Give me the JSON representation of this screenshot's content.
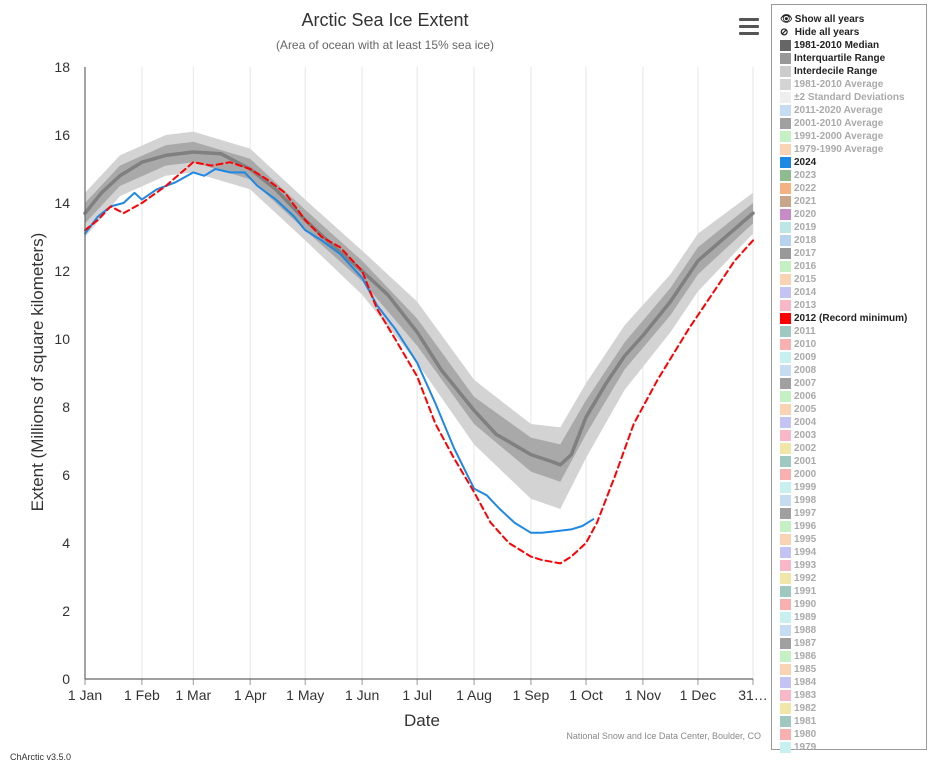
{
  "header": {
    "title": "Arctic Sea Ice Extent",
    "subtitle": "(Area of ocean with at least 15% sea ice)"
  },
  "footer": {
    "credit": "National Snow and Ice Data Center, Boulder, CO",
    "version": "ChArctic v3.5.0"
  },
  "icons": {
    "menu": "hamburger-menu-icon",
    "show": "eye-icon",
    "hide": "eye-slash-icon"
  },
  "legend": {
    "show_all": "Show all years",
    "hide_all": "Hide all years",
    "items": [
      {
        "label": "1981-2010 Median",
        "color": "#666666",
        "on": true
      },
      {
        "label": "Interquartile Range",
        "color": "#999999",
        "on": true
      },
      {
        "label": "Interdecile Range",
        "color": "#cccccc",
        "on": true
      },
      {
        "label": "1981-2010 Average",
        "color": "#d4d4d4",
        "on": false
      },
      {
        "label": "±2 Standard Deviations",
        "color": "#eeeeee",
        "on": false
      },
      {
        "label": "2011-2020 Average",
        "color": "#c6dcf2",
        "on": false
      },
      {
        "label": "2001-2010 Average",
        "color": "#a0a0a0",
        "on": false
      },
      {
        "label": "1991-2000 Average",
        "color": "#c4f0c4",
        "on": false
      },
      {
        "label": "1979-1990 Average",
        "color": "#fad2b4",
        "on": false
      },
      {
        "label": "2024",
        "color": "#1e88e5",
        "on": true
      },
      {
        "label": "2023",
        "color": "#8fbc8f",
        "on": false
      },
      {
        "label": "2022",
        "color": "#f4b183",
        "on": false
      },
      {
        "label": "2021",
        "color": "#c9a58a",
        "on": false
      },
      {
        "label": "2020",
        "color": "#c78bc7",
        "on": false
      },
      {
        "label": "2019",
        "color": "#bde5e5",
        "on": false
      },
      {
        "label": "2018",
        "color": "#b7d3ee",
        "on": false
      },
      {
        "label": "2017",
        "color": "#999999",
        "on": false
      },
      {
        "label": "2016",
        "color": "#c4f0c4",
        "on": false
      },
      {
        "label": "2015",
        "color": "#fad2b4",
        "on": false
      },
      {
        "label": "2014",
        "color": "#c4c4f4",
        "on": false
      },
      {
        "label": "2013",
        "color": "#f8b8c8",
        "on": false
      },
      {
        "label": "2012 (Record minimum)",
        "color": "#ff0000",
        "on": true
      },
      {
        "label": "2011",
        "color": "#9fc8c0",
        "on": false
      },
      {
        "label": "2010",
        "color": "#f8b0b0",
        "on": false
      },
      {
        "label": "2009",
        "color": "#c8f0f0",
        "on": false
      },
      {
        "label": "2008",
        "color": "#c6dcf2",
        "on": false
      },
      {
        "label": "2007",
        "color": "#a0a0a0",
        "on": false
      },
      {
        "label": "2006",
        "color": "#c4f0c4",
        "on": false
      },
      {
        "label": "2005",
        "color": "#fad2b4",
        "on": false
      },
      {
        "label": "2004",
        "color": "#c4c4f4",
        "on": false
      },
      {
        "label": "2003",
        "color": "#f8b8c8",
        "on": false
      },
      {
        "label": "2002",
        "color": "#f0e6a8",
        "on": false
      },
      {
        "label": "2001",
        "color": "#9fc8c0",
        "on": false
      },
      {
        "label": "2000",
        "color": "#f8b0b0",
        "on": false
      },
      {
        "label": "1999",
        "color": "#c8f0f0",
        "on": false
      },
      {
        "label": "1998",
        "color": "#c6dcf2",
        "on": false
      },
      {
        "label": "1997",
        "color": "#a0a0a0",
        "on": false
      },
      {
        "label": "1996",
        "color": "#c4f0c4",
        "on": false
      },
      {
        "label": "1995",
        "color": "#fad2b4",
        "on": false
      },
      {
        "label": "1994",
        "color": "#c4c4f4",
        "on": false
      },
      {
        "label": "1993",
        "color": "#f8b8c8",
        "on": false
      },
      {
        "label": "1992",
        "color": "#f0e6a8",
        "on": false
      },
      {
        "label": "1991",
        "color": "#9fc8c0",
        "on": false
      },
      {
        "label": "1990",
        "color": "#f8b0b0",
        "on": false
      },
      {
        "label": "1989",
        "color": "#c8f0f0",
        "on": false
      },
      {
        "label": "1988",
        "color": "#c6dcf2",
        "on": false
      },
      {
        "label": "1987",
        "color": "#a0a0a0",
        "on": false
      },
      {
        "label": "1986",
        "color": "#c4f0c4",
        "on": false
      },
      {
        "label": "1985",
        "color": "#fad2b4",
        "on": false
      },
      {
        "label": "1984",
        "color": "#c4c4f4",
        "on": false
      },
      {
        "label": "1983",
        "color": "#f8b8c8",
        "on": false
      },
      {
        "label": "1982",
        "color": "#f0e6a8",
        "on": false
      },
      {
        "label": "1981",
        "color": "#9fc8c0",
        "on": false
      },
      {
        "label": "1980",
        "color": "#f8b0b0",
        "on": false
      },
      {
        "label": "1979",
        "color": "#c8f0f0",
        "on": false
      }
    ]
  },
  "chart_data": {
    "type": "line",
    "title": "Arctic Sea Ice Extent",
    "subtitle": "(Area of ocean with at least 15% sea ice)",
    "xlabel": "Date",
    "ylabel": "Extent (Millions of square kilometers)",
    "xlim": [
      1,
      365
    ],
    "ylim": [
      0,
      18
    ],
    "yticks": [
      0,
      2,
      4,
      6,
      8,
      10,
      12,
      14,
      16,
      18
    ],
    "xticks": [
      {
        "day": 1,
        "label": "1 Jan"
      },
      {
        "day": 32,
        "label": "1 Feb"
      },
      {
        "day": 60,
        "label": "1 Mar"
      },
      {
        "day": 91,
        "label": "1 Apr"
      },
      {
        "day": 121,
        "label": "1 May"
      },
      {
        "day": 152,
        "label": "1 Jun"
      },
      {
        "day": 182,
        "label": "1 Jul"
      },
      {
        "day": 213,
        "label": "1 Aug"
      },
      {
        "day": 244,
        "label": "1 Sep"
      },
      {
        "day": 274,
        "label": "1 Oct"
      },
      {
        "day": 305,
        "label": "1 Nov"
      },
      {
        "day": 335,
        "label": "1 Dec"
      },
      {
        "day": 365,
        "label": "31…"
      }
    ],
    "grid": "vertical",
    "legend": "right",
    "series": [
      {
        "name": "1981-2010 Median",
        "type": "line",
        "color": "#808080",
        "x": [
          1,
          10,
          20,
          32,
          45,
          60,
          75,
          91,
          105,
          121,
          135,
          152,
          166,
          182,
          195,
          213,
          225,
          244,
          255,
          260,
          266,
          274,
          285,
          295,
          305,
          320,
          335,
          350,
          365
        ],
        "y": [
          13.7,
          14.3,
          14.8,
          15.2,
          15.4,
          15.5,
          15.45,
          15.0,
          14.4,
          13.5,
          12.8,
          12.0,
          11.3,
          10.2,
          9.1,
          7.9,
          7.2,
          6.6,
          6.4,
          6.3,
          6.6,
          7.7,
          8.7,
          9.5,
          10.1,
          11.1,
          12.3,
          13.0,
          13.7
        ]
      },
      {
        "name": "Interquartile Range",
        "type": "band",
        "color": "#a9a9a9",
        "x": [
          1,
          20,
          45,
          60,
          91,
          121,
          152,
          182,
          213,
          244,
          260,
          274,
          295,
          320,
          335,
          365
        ],
        "low": [
          13.4,
          14.5,
          15.1,
          15.2,
          14.7,
          13.2,
          11.7,
          9.8,
          7.5,
          6.1,
          5.8,
          7.2,
          9.1,
          10.7,
          11.9,
          13.4
        ],
        "high": [
          14.0,
          15.1,
          15.7,
          15.8,
          15.3,
          13.8,
          12.3,
          10.6,
          8.3,
          7.1,
          6.9,
          8.2,
          9.9,
          11.5,
          12.7,
          14.0
        ]
      },
      {
        "name": "Interdecile Range",
        "type": "band",
        "color": "#d3d3d3",
        "x": [
          1,
          20,
          45,
          60,
          91,
          121,
          152,
          182,
          213,
          244,
          260,
          274,
          295,
          320,
          335,
          365
        ],
        "low": [
          13.0,
          14.2,
          14.8,
          14.9,
          14.4,
          12.9,
          11.3,
          9.3,
          6.9,
          5.3,
          5.0,
          6.5,
          8.5,
          10.2,
          11.4,
          13.1
        ],
        "high": [
          14.3,
          15.4,
          16.0,
          16.1,
          15.6,
          14.1,
          12.6,
          11.1,
          8.8,
          7.5,
          7.4,
          8.7,
          10.4,
          11.9,
          13.1,
          14.3
        ]
      },
      {
        "name": "2024",
        "type": "line",
        "color": "#1e88e5",
        "x": [
          1,
          8,
          15,
          22,
          28,
          32,
          40,
          50,
          60,
          66,
          72,
          80,
          88,
          95,
          105,
          115,
          121,
          130,
          140,
          152,
          160,
          170,
          182,
          192,
          202,
          213,
          220,
          227,
          235,
          244,
          250,
          258,
          266,
          272,
          278
        ],
        "y": [
          13.1,
          13.6,
          13.9,
          14.0,
          14.3,
          14.1,
          14.4,
          14.6,
          14.9,
          14.8,
          15.0,
          14.9,
          14.9,
          14.5,
          14.1,
          13.6,
          13.2,
          12.9,
          12.5,
          11.8,
          11.0,
          10.3,
          9.3,
          8.1,
          6.8,
          5.6,
          5.4,
          5.0,
          4.6,
          4.3,
          4.3,
          4.35,
          4.4,
          4.5,
          4.7
        ]
      },
      {
        "name": "2012 (Record minimum)",
        "type": "line",
        "dashed": true,
        "color": "#ff0000",
        "x": [
          1,
          8,
          15,
          22,
          32,
          45,
          60,
          70,
          80,
          91,
          100,
          110,
          121,
          130,
          140,
          152,
          160,
          170,
          182,
          192,
          202,
          213,
          222,
          232,
          244,
          250,
          255,
          260,
          266,
          274,
          280,
          290,
          300,
          313,
          330,
          345,
          355,
          365
        ],
        "y": [
          13.2,
          13.5,
          13.9,
          13.7,
          14.0,
          14.5,
          15.2,
          15.1,
          15.2,
          15.0,
          14.7,
          14.3,
          13.5,
          13.0,
          12.7,
          12.0,
          10.9,
          10.0,
          8.9,
          7.5,
          6.5,
          5.5,
          4.6,
          4.0,
          3.6,
          3.5,
          3.45,
          3.4,
          3.6,
          4.0,
          4.6,
          6.0,
          7.5,
          8.8,
          10.3,
          11.5,
          12.3,
          12.9
        ]
      }
    ]
  }
}
